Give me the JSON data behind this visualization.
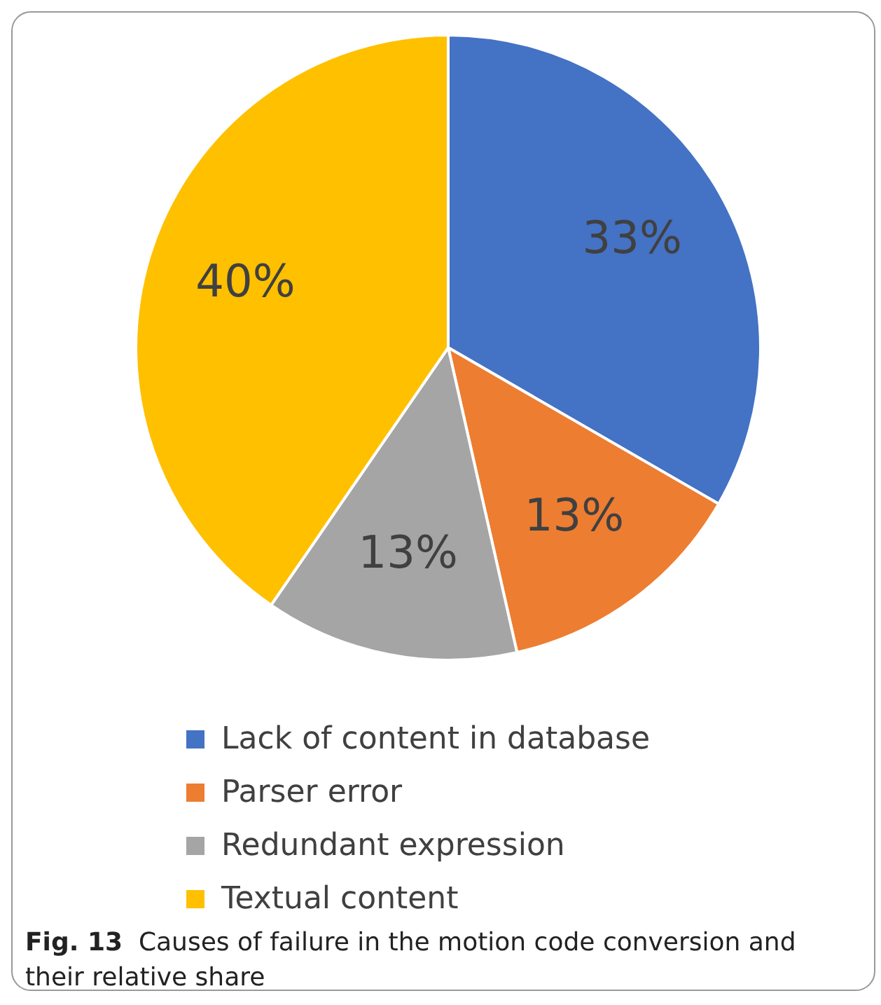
{
  "chart_data": {
    "type": "pie",
    "categories": [
      "Lack of content in database",
      "Parser error",
      "Redundant expression",
      "Textual content"
    ],
    "values": [
      33,
      13,
      13,
      40
    ],
    "colors": [
      "#4472c4",
      "#ed7d31",
      "#a5a5a5",
      "#ffc000"
    ],
    "value_labels": [
      "33%",
      "13%",
      "13%",
      "40%"
    ],
    "legend": "bottom",
    "annotations": [
      "Fig. 13",
      "Causes of failure in the motion code conversion and their relative share"
    ]
  }
}
